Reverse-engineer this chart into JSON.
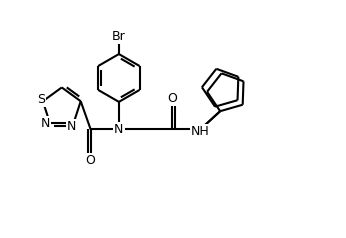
{
  "background_color": "#ffffff",
  "line_color": "#000000",
  "lw": 1.5,
  "fs": 9,
  "xlim": [
    0,
    10
  ],
  "ylim": [
    0,
    7
  ]
}
